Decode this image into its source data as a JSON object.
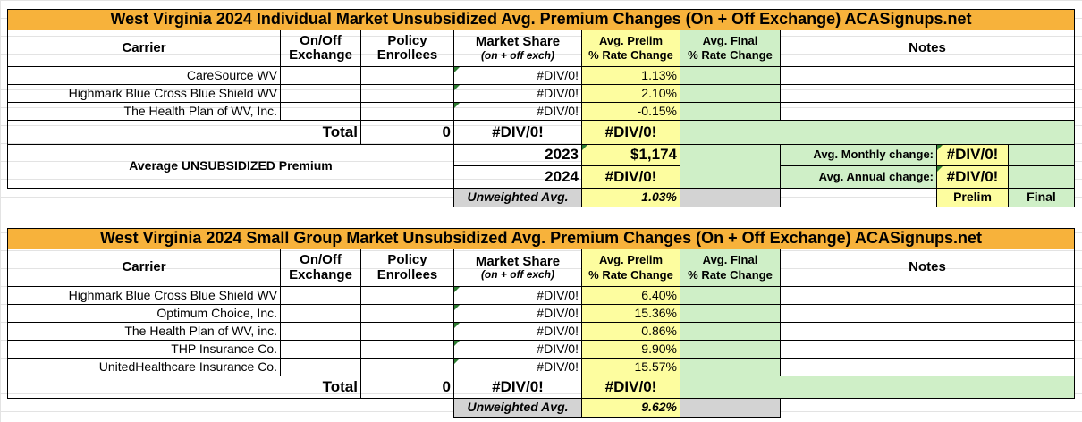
{
  "headers": {
    "carrier": "Carrier",
    "onoff_line1": "On/Off",
    "onoff_line2": "Exchange",
    "policy_line1": "Policy",
    "policy_line2": "Enrollees",
    "market_share": "Market Share",
    "market_share_sub": "(on + off exch)",
    "prelim_line1": "Avg. Prelim",
    "prelim_line2": "% Rate Change",
    "final_line1": "Avg. FInal",
    "final_line2": "% Rate Change",
    "notes": "Notes"
  },
  "individual": {
    "title": "West Virginia 2024 Individual Market Unsubsidized Avg. Premium Changes (On + Off Exchange) ACASignups.net",
    "rows": [
      {
        "carrier": "CareSource WV",
        "share": "#DIV/0!",
        "prelim": "1.13%"
      },
      {
        "carrier": "Highmark Blue Cross Blue Shield WV",
        "share": "#DIV/0!",
        "prelim": "2.10%"
      },
      {
        "carrier": "The Health Plan of WV, Inc.",
        "share": "#DIV/0!",
        "prelim": "-0.15%"
      }
    ],
    "total_label": "Total",
    "total_enrollees": "0",
    "total_share": "#DIV/0!",
    "total_prelim": "#DIV/0!",
    "avg_premium_label": "Average UNSUBSIDIZED Premium",
    "year1": "2023",
    "year1_value": "$1,174",
    "year2": "2024",
    "year2_value": "#DIV/0!",
    "monthly_label": "Avg. Monthly change:",
    "monthly_value": "#DIV/0!",
    "annual_label": "Avg. Annual change:",
    "annual_value": "#DIV/0!",
    "unweighted_label": "Unweighted Avg.",
    "unweighted_value": "1.03%",
    "prelim_label": "Prelim",
    "final_label": "Final"
  },
  "small_group": {
    "title": "West Virginia 2024 Small Group Market Unsubsidized Avg. Premium Changes (On + Off Exchange) ACASignups.net",
    "rows": [
      {
        "carrier": "Highmark Blue Cross Blue Shield WV",
        "share": "#DIV/0!",
        "prelim": "6.40%"
      },
      {
        "carrier": "Optimum Choice, Inc.",
        "share": "#DIV/0!",
        "prelim": "15.36%"
      },
      {
        "carrier": "The Health Plan of WV, inc.",
        "share": "#DIV/0!",
        "prelim": "0.86%"
      },
      {
        "carrier": "THP Insurance Co.",
        "share": "#DIV/0!",
        "prelim": "9.90%"
      },
      {
        "carrier": "UnitedHealthcare Insurance Co.",
        "share": "#DIV/0!",
        "prelim": "15.57%"
      }
    ],
    "total_label": "Total",
    "total_enrollees": "0",
    "total_share": "#DIV/0!",
    "total_prelim": "#DIV/0!",
    "unweighted_label": "Unweighted Avg.",
    "unweighted_value": "9.62%"
  },
  "colors": {
    "title_bg": "#f7b23b",
    "prelim_bg": "#fdfd9f",
    "final_bg": "#cfefc7",
    "unweighted_bg": "#d3d3d3"
  }
}
